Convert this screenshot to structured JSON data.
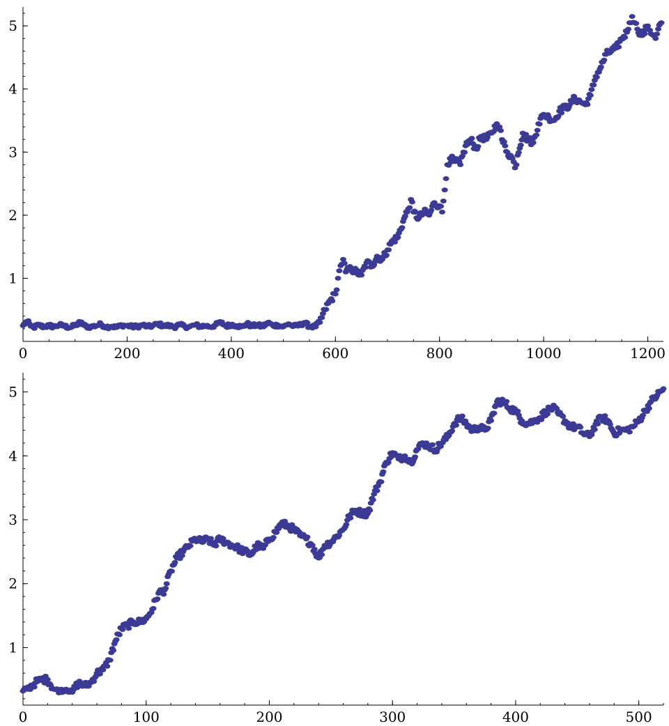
{
  "chart_data": [
    {
      "type": "scatter",
      "title": "",
      "xlabel": "",
      "ylabel": "",
      "xlim": [
        0,
        1230
      ],
      "ylim": [
        0,
        5.3
      ],
      "x_major_ticks": [
        0,
        200,
        400,
        600,
        800,
        1000,
        1200
      ],
      "x_minor_step": 50,
      "y_major_ticks": [
        1,
        2,
        3,
        4,
        5
      ],
      "y_minor_step": 0.2,
      "grid": false,
      "marker_color": "#3b3b96",
      "series": [
        {
          "points": [
            [
              0,
              0.25
            ],
            [
              8,
              0.32
            ],
            [
              15,
              0.24
            ],
            [
              20,
              0.22
            ],
            [
              30,
              0.26
            ],
            [
              40,
              0.23
            ],
            [
              50,
              0.25
            ],
            [
              60,
              0.23
            ],
            [
              70,
              0.26
            ],
            [
              80,
              0.24
            ],
            [
              90,
              0.22
            ],
            [
              100,
              0.25
            ],
            [
              110,
              0.3
            ],
            [
              120,
              0.24
            ],
            [
              130,
              0.23
            ],
            [
              140,
              0.25
            ],
            [
              150,
              0.27
            ],
            [
              160,
              0.23
            ],
            [
              170,
              0.24
            ],
            [
              180,
              0.22
            ],
            [
              190,
              0.26
            ],
            [
              200,
              0.25
            ],
            [
              210,
              0.23
            ],
            [
              220,
              0.24
            ],
            [
              230,
              0.26
            ],
            [
              240,
              0.23
            ],
            [
              250,
              0.25
            ],
            [
              260,
              0.28
            ],
            [
              270,
              0.24
            ],
            [
              280,
              0.25
            ],
            [
              290,
              0.23
            ],
            [
              300,
              0.26
            ],
            [
              310,
              0.24
            ],
            [
              320,
              0.23
            ],
            [
              330,
              0.26
            ],
            [
              340,
              0.24
            ],
            [
              350,
              0.25
            ],
            [
              360,
              0.23
            ],
            [
              370,
              0.26
            ],
            [
              380,
              0.3
            ],
            [
              390,
              0.24
            ],
            [
              400,
              0.27
            ],
            [
              410,
              0.25
            ],
            [
              420,
              0.23
            ],
            [
              430,
              0.28
            ],
            [
              440,
              0.24
            ],
            [
              450,
              0.26
            ],
            [
              460,
              0.23
            ],
            [
              470,
              0.3
            ],
            [
              480,
              0.25
            ],
            [
              490,
              0.26
            ],
            [
              500,
              0.23
            ],
            [
              510,
              0.28
            ],
            [
              520,
              0.24
            ],
            [
              530,
              0.25
            ],
            [
              540,
              0.3
            ],
            [
              550,
              0.24
            ],
            [
              560,
              0.23
            ],
            [
              570,
              0.3
            ],
            [
              580,
              0.5
            ],
            [
              590,
              0.65
            ],
            [
              600,
              0.75
            ],
            [
              605,
              1.0
            ],
            [
              610,
              1.2
            ],
            [
              615,
              1.3
            ],
            [
              620,
              1.1
            ],
            [
              630,
              1.15
            ],
            [
              640,
              1.1
            ],
            [
              650,
              1.05
            ],
            [
              660,
              1.25
            ],
            [
              670,
              1.2
            ],
            [
              680,
              1.35
            ],
            [
              690,
              1.3
            ],
            [
              700,
              1.45
            ],
            [
              710,
              1.6
            ],
            [
              720,
              1.65
            ],
            [
              730,
              1.9
            ],
            [
              740,
              2.1
            ],
            [
              745,
              2.25
            ],
            [
              750,
              2.05
            ],
            [
              760,
              1.95
            ],
            [
              770,
              2.05
            ],
            [
              780,
              2.0
            ],
            [
              790,
              2.2
            ],
            [
              800,
              2.15
            ],
            [
              805,
              2.05
            ],
            [
              810,
              2.4
            ],
            [
              815,
              2.8
            ],
            [
              820,
              2.9
            ],
            [
              830,
              2.85
            ],
            [
              840,
              2.8
            ],
            [
              850,
              3.1
            ],
            [
              860,
              3.2
            ],
            [
              870,
              3.05
            ],
            [
              880,
              3.25
            ],
            [
              890,
              3.2
            ],
            [
              900,
              3.3
            ],
            [
              910,
              3.45
            ],
            [
              915,
              3.4
            ],
            [
              920,
              3.2
            ],
            [
              930,
              3.0
            ],
            [
              940,
              2.9
            ],
            [
              945,
              2.75
            ],
            [
              950,
              2.95
            ],
            [
              960,
              3.3
            ],
            [
              970,
              3.2
            ],
            [
              980,
              3.15
            ],
            [
              990,
              3.45
            ],
            [
              1000,
              3.6
            ],
            [
              1010,
              3.55
            ],
            [
              1020,
              3.5
            ],
            [
              1030,
              3.65
            ],
            [
              1040,
              3.7
            ],
            [
              1050,
              3.75
            ],
            [
              1060,
              3.85
            ],
            [
              1070,
              3.8
            ],
            [
              1080,
              3.75
            ],
            [
              1090,
              3.9
            ],
            [
              1100,
              4.2
            ],
            [
              1110,
              4.35
            ],
            [
              1120,
              4.55
            ],
            [
              1130,
              4.6
            ],
            [
              1140,
              4.65
            ],
            [
              1150,
              4.8
            ],
            [
              1160,
              4.9
            ],
            [
              1165,
              5.05
            ],
            [
              1170,
              5.15
            ],
            [
              1175,
              5.05
            ],
            [
              1180,
              4.95
            ],
            [
              1190,
              4.85
            ],
            [
              1200,
              5.0
            ],
            [
              1210,
              4.85
            ],
            [
              1215,
              4.8
            ],
            [
              1220,
              4.95
            ],
            [
              1226,
              5.05
            ]
          ]
        }
      ]
    },
    {
      "type": "scatter",
      "title": "",
      "xlabel": "",
      "ylabel": "",
      "xlim": [
        0,
        520
      ],
      "ylim": [
        0.1,
        5.3
      ],
      "x_major_ticks": [
        0,
        100,
        200,
        300,
        400,
        500
      ],
      "x_minor_step": 20,
      "y_major_ticks": [
        1,
        2,
        3,
        4,
        5
      ],
      "y_minor_step": 0.2,
      "grid": false,
      "marker_color": "#3b3b96",
      "series": [
        {
          "points": [
            [
              0,
              0.32
            ],
            [
              5,
              0.38
            ],
            [
              10,
              0.45
            ],
            [
              15,
              0.5
            ],
            [
              20,
              0.5
            ],
            [
              25,
              0.35
            ],
            [
              30,
              0.32
            ],
            [
              35,
              0.35
            ],
            [
              40,
              0.3
            ],
            [
              45,
              0.45
            ],
            [
              50,
              0.4
            ],
            [
              55,
              0.45
            ],
            [
              60,
              0.6
            ],
            [
              65,
              0.65
            ],
            [
              70,
              0.8
            ],
            [
              75,
              1.1
            ],
            [
              80,
              1.3
            ],
            [
              85,
              1.35
            ],
            [
              90,
              1.4
            ],
            [
              95,
              1.4
            ],
            [
              100,
              1.45
            ],
            [
              105,
              1.6
            ],
            [
              110,
              1.85
            ],
            [
              115,
              1.9
            ],
            [
              120,
              2.2
            ],
            [
              125,
              2.4
            ],
            [
              130,
              2.5
            ],
            [
              135,
              2.6
            ],
            [
              140,
              2.7
            ],
            [
              145,
              2.65
            ],
            [
              150,
              2.7
            ],
            [
              155,
              2.6
            ],
            [
              160,
              2.7
            ],
            [
              165,
              2.65
            ],
            [
              170,
              2.6
            ],
            [
              175,
              2.55
            ],
            [
              180,
              2.5
            ],
            [
              185,
              2.45
            ],
            [
              190,
              2.6
            ],
            [
              195,
              2.55
            ],
            [
              200,
              2.7
            ],
            [
              205,
              2.8
            ],
            [
              210,
              2.95
            ],
            [
              215,
              2.9
            ],
            [
              220,
              2.85
            ],
            [
              225,
              2.75
            ],
            [
              230,
              2.7
            ],
            [
              235,
              2.6
            ],
            [
              240,
              2.4
            ],
            [
              245,
              2.6
            ],
            [
              250,
              2.65
            ],
            [
              255,
              2.75
            ],
            [
              260,
              2.85
            ],
            [
              265,
              3.05
            ],
            [
              270,
              3.15
            ],
            [
              275,
              3.1
            ],
            [
              280,
              3.1
            ],
            [
              285,
              3.4
            ],
            [
              290,
              3.6
            ],
            [
              295,
              3.9
            ],
            [
              300,
              4.05
            ],
            [
              305,
              3.95
            ],
            [
              310,
              4.0
            ],
            [
              315,
              3.9
            ],
            [
              320,
              4.1
            ],
            [
              325,
              4.2
            ],
            [
              330,
              4.15
            ],
            [
              335,
              4.1
            ],
            [
              340,
              4.2
            ],
            [
              345,
              4.3
            ],
            [
              350,
              4.5
            ],
            [
              355,
              4.6
            ],
            [
              360,
              4.5
            ],
            [
              365,
              4.4
            ],
            [
              370,
              4.45
            ],
            [
              375,
              4.4
            ],
            [
              380,
              4.55
            ],
            [
              385,
              4.85
            ],
            [
              390,
              4.85
            ],
            [
              395,
              4.75
            ],
            [
              400,
              4.7
            ],
            [
              405,
              4.55
            ],
            [
              410,
              4.5
            ],
            [
              415,
              4.55
            ],
            [
              420,
              4.6
            ],
            [
              425,
              4.7
            ],
            [
              430,
              4.75
            ],
            [
              435,
              4.65
            ],
            [
              440,
              4.55
            ],
            [
              445,
              4.45
            ],
            [
              450,
              4.45
            ],
            [
              455,
              4.35
            ],
            [
              460,
              4.3
            ],
            [
              465,
              4.5
            ],
            [
              470,
              4.6
            ],
            [
              475,
              4.55
            ],
            [
              480,
              4.35
            ],
            [
              485,
              4.4
            ],
            [
              490,
              4.4
            ],
            [
              495,
              4.45
            ],
            [
              500,
              4.55
            ],
            [
              505,
              4.7
            ],
            [
              510,
              4.85
            ],
            [
              515,
              4.95
            ],
            [
              520,
              5.05
            ]
          ]
        }
      ]
    }
  ]
}
